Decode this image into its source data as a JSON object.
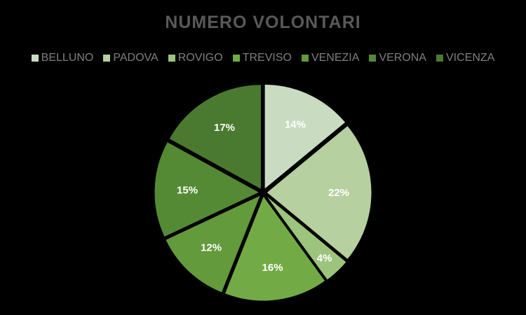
{
  "chart_data": {
    "type": "pie",
    "title": "NUMERO VOLONTARI",
    "legend_position": "top",
    "categories": [
      "BELLUNO",
      "PADOVA",
      "ROVIGO",
      "TREVISO",
      "VENEZIA",
      "VERONA",
      "VICENZA"
    ],
    "values": [
      14,
      22,
      4,
      16,
      12,
      15,
      17
    ],
    "data_labels": [
      "14%",
      "22%",
      "4%",
      "16%",
      "12%",
      "15%",
      "17%"
    ],
    "colors": [
      "#c9dcc1",
      "#b6d09f",
      "#9cc47c",
      "#72ab46",
      "#629a3c",
      "#548a34",
      "#4a7a2f"
    ]
  }
}
